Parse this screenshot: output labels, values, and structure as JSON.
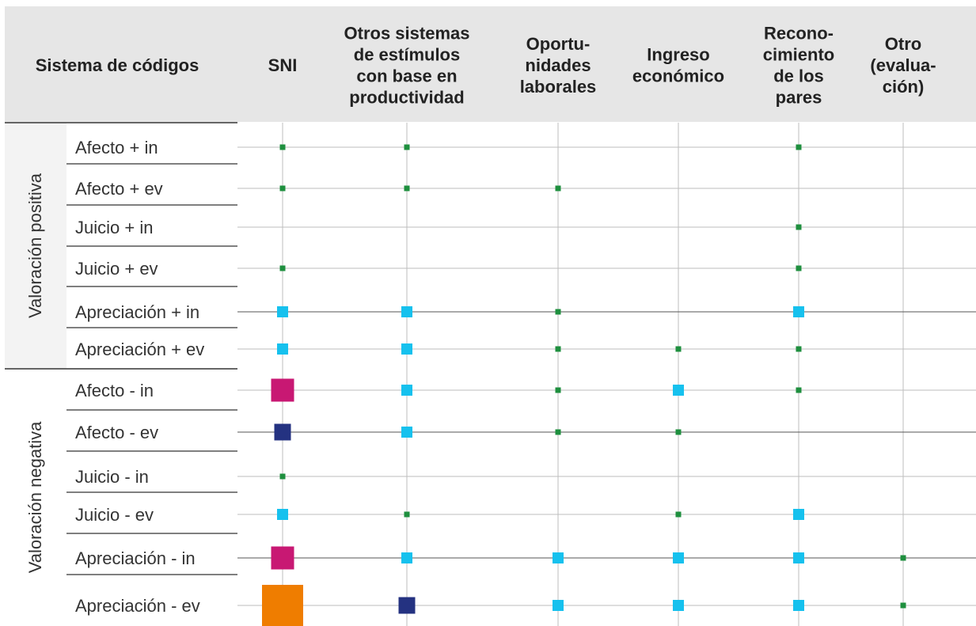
{
  "chart_data": {
    "type": "table",
    "title": "",
    "header_label": "Sistema de códigos",
    "columns": [
      [
        "SNI"
      ],
      [
        "Otros sistemas",
        "de estímulos",
        "con base en",
        "productividad"
      ],
      [
        "Oportu-",
        "nidades",
        "laborales"
      ],
      [
        "Ingreso",
        "económico"
      ],
      [
        "Recono-",
        "cimiento",
        "de los",
        "pares"
      ],
      [
        "Otro",
        "(evalua-",
        "ción)"
      ]
    ],
    "groups": [
      {
        "label": "Valoración positiva",
        "rows": [
          0,
          1,
          2,
          3,
          4,
          5
        ]
      },
      {
        "label": "Valoración negativa",
        "rows": [
          6,
          7,
          8,
          9,
          10,
          11
        ]
      }
    ],
    "rows": [
      "Afecto + in",
      "Afecto + ev",
      "Juicio + in",
      "Juicio + ev",
      "Apreciación + in",
      "Apreciación + ev",
      "Afecto - in",
      "Afecto - ev",
      "Juicio - in",
      "Juicio - ev",
      "Apreciación - in",
      "Apreciación - ev"
    ],
    "value_note": "Square size encodes relative code frequency (1 = smallest, 5 = largest); not printed in the image",
    "levels": [
      {
        "level": 1,
        "color": "#1e8f3e"
      },
      {
        "level": 2,
        "color": "#16c1ee"
      },
      {
        "level": 3,
        "color": "#243281"
      },
      {
        "level": 4,
        "color": "#c81873"
      },
      {
        "level": 5,
        "color": "#ef7d00"
      }
    ],
    "cells": [
      [
        1,
        1,
        0,
        0,
        1,
        0
      ],
      [
        1,
        1,
        1,
        0,
        0,
        0
      ],
      [
        0,
        0,
        0,
        0,
        1,
        0
      ],
      [
        1,
        0,
        0,
        0,
        1,
        0
      ],
      [
        2,
        2,
        1,
        0,
        2,
        0
      ],
      [
        2,
        2,
        1,
        1,
        1,
        0
      ],
      [
        4,
        2,
        1,
        2,
        1,
        0
      ],
      [
        3,
        2,
        1,
        1,
        0,
        0
      ],
      [
        1,
        0,
        0,
        0,
        0,
        0
      ],
      [
        2,
        1,
        0,
        1,
        2,
        0
      ],
      [
        4,
        2,
        2,
        2,
        2,
        1
      ],
      [
        5,
        3,
        2,
        2,
        2,
        1
      ]
    ]
  }
}
